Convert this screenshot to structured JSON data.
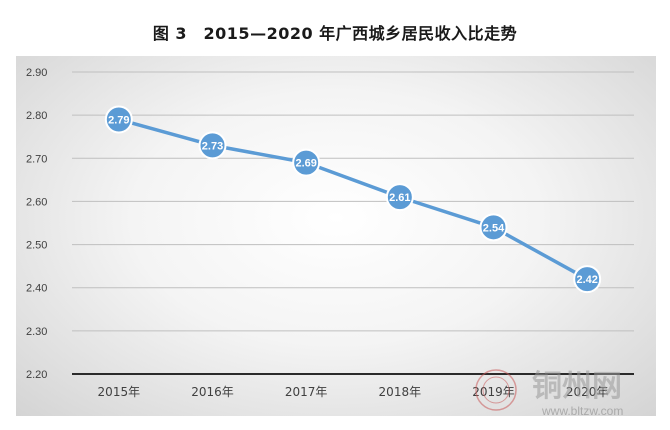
{
  "chart_data": {
    "type": "line",
    "title": "图 3　2015—2020 年广西城乡居民收入比走势",
    "categories": [
      "2015年",
      "2016年",
      "2017年",
      "2018年",
      "2019年",
      "2020年"
    ],
    "values": [
      2.79,
      2.73,
      2.69,
      2.61,
      2.54,
      2.42
    ],
    "data_labels": [
      "2.79",
      "2.73",
      "2.69",
      "2.61",
      "2.54",
      "2.42"
    ],
    "ylim": [
      2.2,
      2.9
    ],
    "yticks": [
      2.2,
      2.3,
      2.4,
      2.5,
      2.6,
      2.7,
      2.8,
      2.9
    ],
    "ytick_labels": [
      "2.20",
      "2.30",
      "2.40",
      "2.50",
      "2.60",
      "2.70",
      "2.80",
      "2.90"
    ],
    "grid": true,
    "legend": "none",
    "colors": {
      "line": "#5b9bd5",
      "marker": "#5b9bd5",
      "marker_text": "#ffffff",
      "grid": "#bfbfbf",
      "axis": "#2b2b2b"
    }
  },
  "watermark": {
    "text": "铜州网",
    "url": "www.bltzw.com"
  }
}
